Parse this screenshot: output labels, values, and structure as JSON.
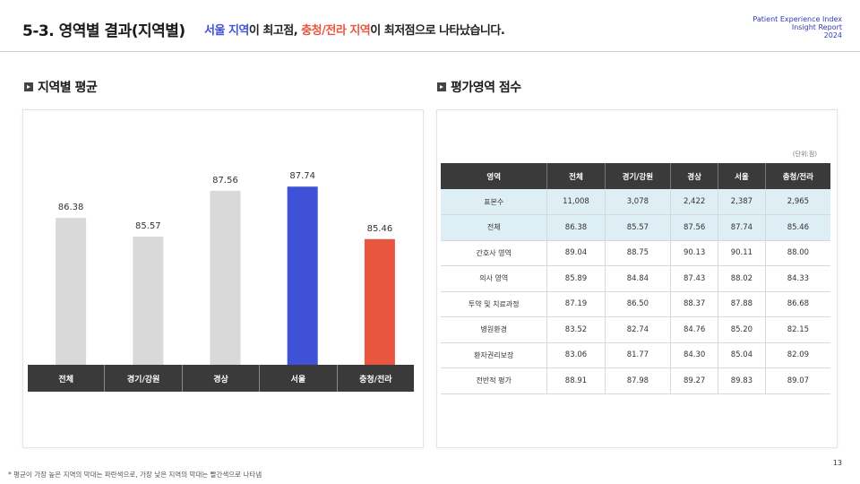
{
  "header": {
    "title": "5-3. 영역별 결과(지역별)",
    "subtitle_part1": "서울 지역",
    "subtitle_part2": "이 최고점, ",
    "subtitle_part3": "충청/전라 지역",
    "subtitle_part4": "이 최저점으로 나타났습니다.",
    "brand_line1": "Patient Experience Index",
    "brand_line2": "Insight Report",
    "brand_line3": "2024"
  },
  "left_section": {
    "heading": "지역별 평균"
  },
  "right_section": {
    "heading": "평가영역 점수",
    "unit": "(단위:점)"
  },
  "colors": {
    "bar_default": "#d9d9d9",
    "bar_highest": "#3f51d6",
    "bar_lowest": "#e8563f",
    "axis_bg": "#3a3a3a",
    "highlight_row": "#ddeef5"
  },
  "chart_data": {
    "type": "bar",
    "categories": [
      "전체",
      "경기/강원",
      "경상",
      "서울",
      "충청/전라"
    ],
    "values": [
      86.38,
      85.57,
      87.56,
      87.74,
      85.46
    ],
    "value_labels": [
      "86.38",
      "85.57",
      "87.56",
      "87.74",
      "85.46"
    ],
    "highlight": [
      "default",
      "default",
      "default",
      "highest",
      "lowest"
    ],
    "ylim": [
      80,
      89.5
    ]
  },
  "table": {
    "headers": [
      "영역",
      "전체",
      "경기/강원",
      "경상",
      "서울",
      "충청/전라"
    ],
    "rows": [
      {
        "label": "표본수",
        "values": [
          "11,008",
          "3,078",
          "2,422",
          "2,387",
          "2,965"
        ],
        "highlight": true
      },
      {
        "label": "전체",
        "values": [
          "86.38",
          "85.57",
          "87.56",
          "87.74",
          "85.46"
        ],
        "highlight": true
      },
      {
        "label": "간호사 영역",
        "values": [
          "89.04",
          "88.75",
          "90.13",
          "90.11",
          "88.00"
        ],
        "highlight": false
      },
      {
        "label": "의사 영역",
        "values": [
          "85.89",
          "84.84",
          "87.43",
          "88.02",
          "84.33"
        ],
        "highlight": false
      },
      {
        "label": "투약 및 치료과정",
        "values": [
          "87.19",
          "86.50",
          "88.37",
          "87.88",
          "86.68"
        ],
        "highlight": false
      },
      {
        "label": "병원환경",
        "values": [
          "83.52",
          "82.74",
          "84.76",
          "85.20",
          "82.15"
        ],
        "highlight": false
      },
      {
        "label": "환자권리보장",
        "values": [
          "83.06",
          "81.77",
          "84.30",
          "85.04",
          "82.09"
        ],
        "highlight": false
      },
      {
        "label": "전반적 평가",
        "values": [
          "88.91",
          "87.98",
          "89.27",
          "89.83",
          "89.07"
        ],
        "highlight": false
      }
    ]
  },
  "footnote": "* 평균이 가장 높은 지역의 막대는 파란색으로, 가장 낮은 지역의 막대는 빨간색으로 나타냄",
  "page_number": "13"
}
